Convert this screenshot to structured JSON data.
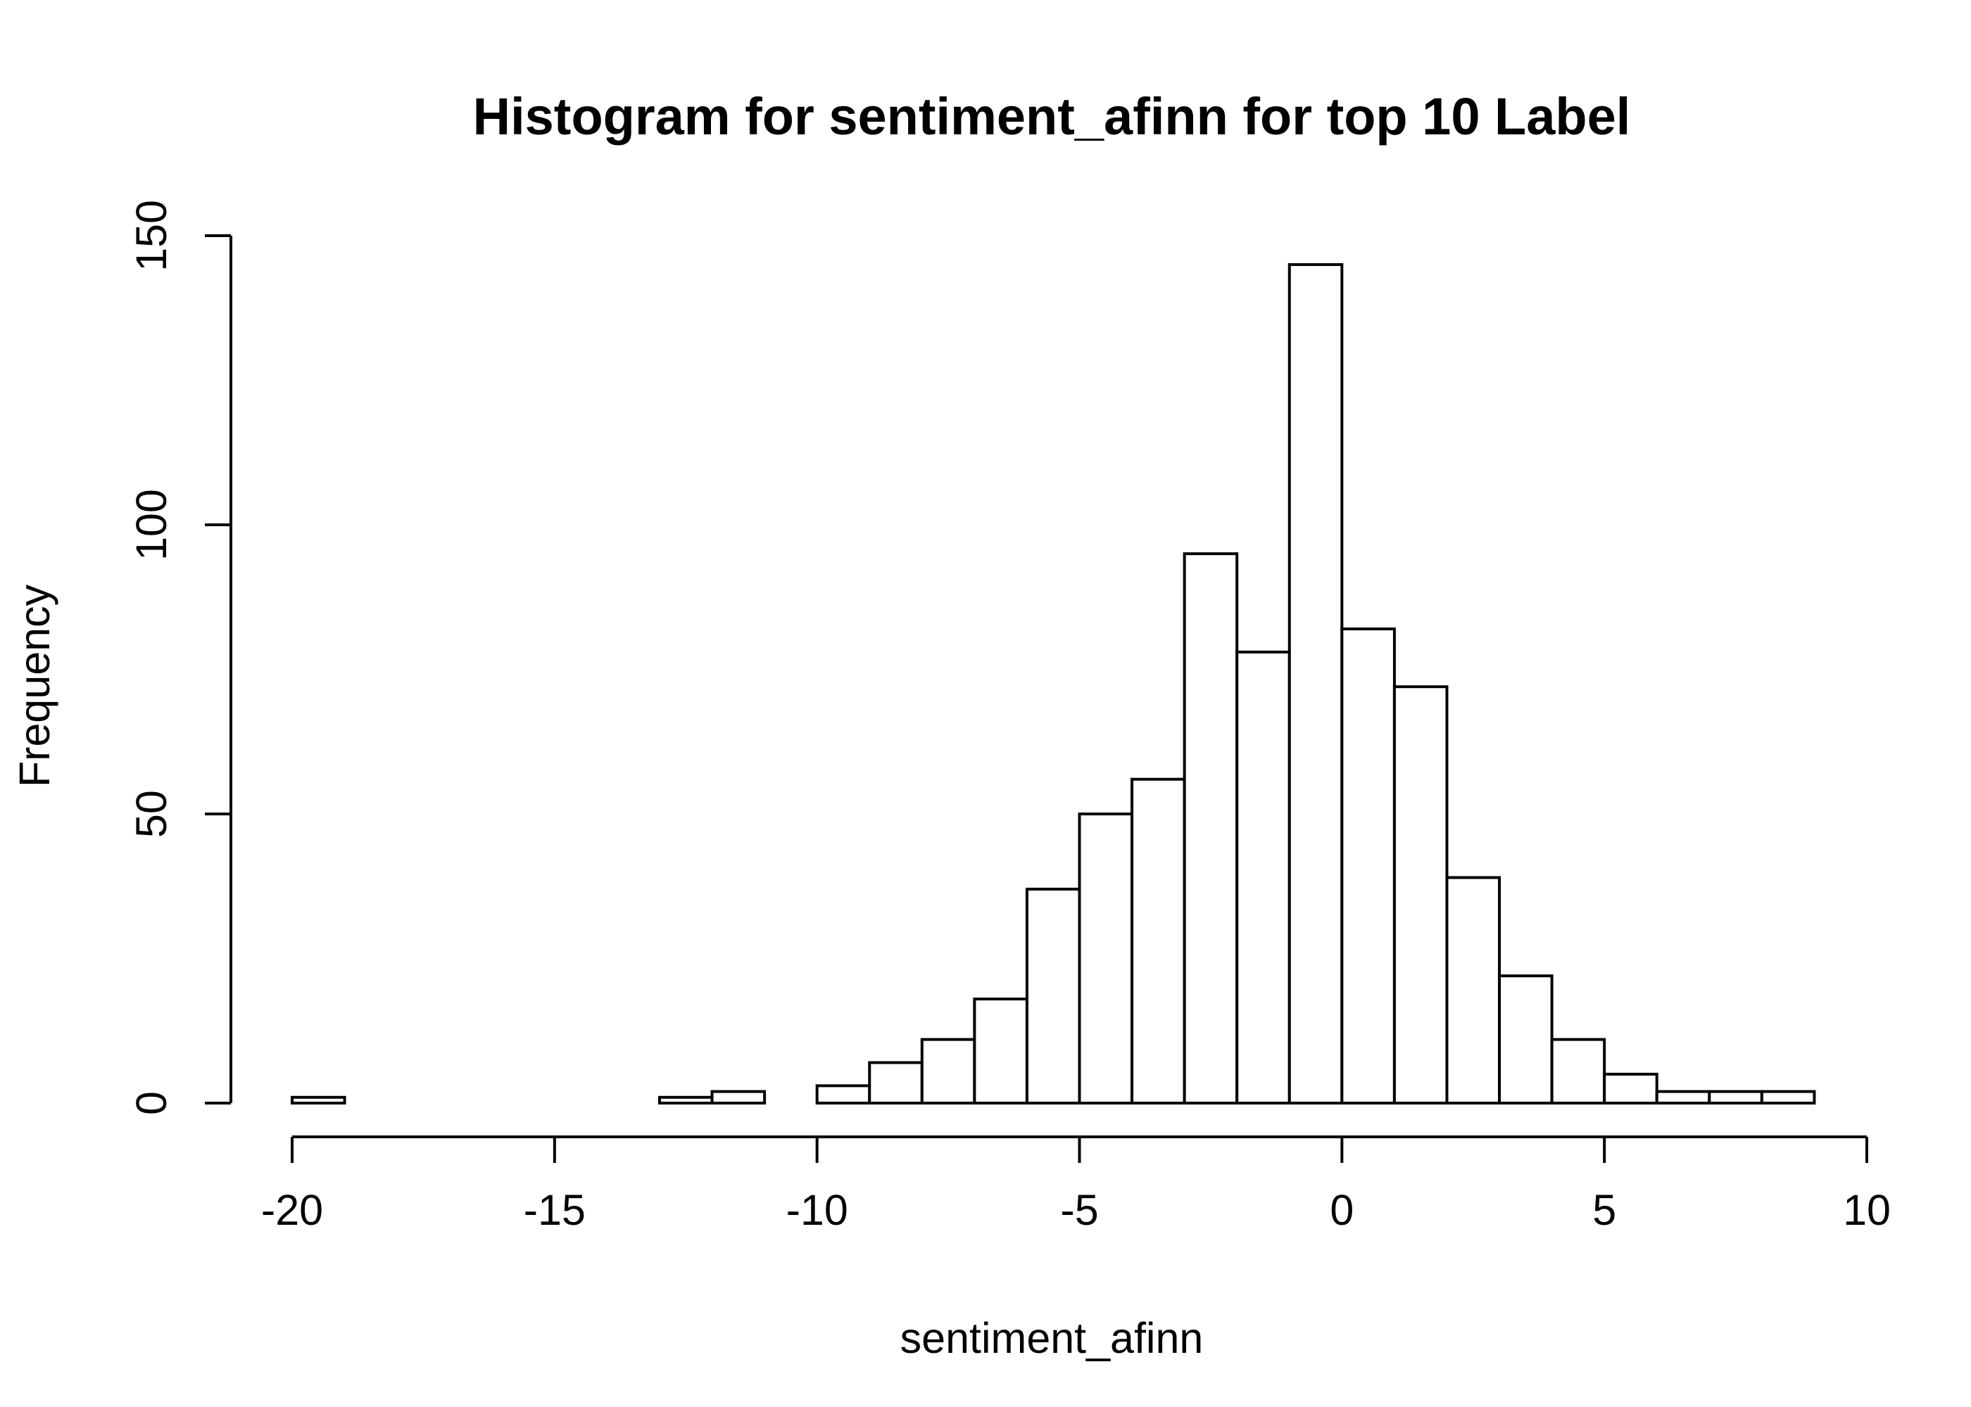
{
  "chart_data": {
    "type": "bar",
    "title": "Histogram for sentiment_afinn for top 10 Label",
    "xlabel": "sentiment_afinn",
    "ylabel": "Frequency",
    "bin_width": 1,
    "bins": [
      {
        "x0": -20,
        "x1": -19,
        "count": 1
      },
      {
        "x0": -19,
        "x1": -18,
        "count": 0
      },
      {
        "x0": -18,
        "x1": -17,
        "count": 0
      },
      {
        "x0": -17,
        "x1": -16,
        "count": 0
      },
      {
        "x0": -16,
        "x1": -15,
        "count": 0
      },
      {
        "x0": -15,
        "x1": -14,
        "count": 0
      },
      {
        "x0": -14,
        "x1": -13,
        "count": 0
      },
      {
        "x0": -13,
        "x1": -12,
        "count": 1
      },
      {
        "x0": -12,
        "x1": -11,
        "count": 2
      },
      {
        "x0": -11,
        "x1": -10,
        "count": 0
      },
      {
        "x0": -10,
        "x1": -9,
        "count": 3
      },
      {
        "x0": -9,
        "x1": -8,
        "count": 7
      },
      {
        "x0": -8,
        "x1": -7,
        "count": 11
      },
      {
        "x0": -7,
        "x1": -6,
        "count": 18
      },
      {
        "x0": -6,
        "x1": -5,
        "count": 37
      },
      {
        "x0": -5,
        "x1": -4,
        "count": 50
      },
      {
        "x0": -4,
        "x1": -3,
        "count": 56
      },
      {
        "x0": -3,
        "x1": -2,
        "count": 95
      },
      {
        "x0": -2,
        "x1": -1,
        "count": 78
      },
      {
        "x0": -1,
        "x1": 0,
        "count": 145
      },
      {
        "x0": 0,
        "x1": 1,
        "count": 82
      },
      {
        "x0": 1,
        "x1": 2,
        "count": 72
      },
      {
        "x0": 2,
        "x1": 3,
        "count": 39
      },
      {
        "x0": 3,
        "x1": 4,
        "count": 22
      },
      {
        "x0": 4,
        "x1": 5,
        "count": 11
      },
      {
        "x0": 5,
        "x1": 6,
        "count": 5
      },
      {
        "x0": 6,
        "x1": 7,
        "count": 2
      },
      {
        "x0": 7,
        "x1": 8,
        "count": 2
      },
      {
        "x0": 8,
        "x1": 9,
        "count": 2
      }
    ],
    "xlim": [
      -20,
      10
    ],
    "ylim": [
      0,
      150
    ],
    "x_ticks": [
      -20,
      -15,
      -10,
      -5,
      0,
      5,
      10
    ],
    "x_tick_labels": [
      "-20",
      "-15",
      "-10",
      "-5",
      "0",
      "5",
      "10"
    ],
    "y_ticks": [
      0,
      50,
      100,
      150
    ],
    "y_tick_labels": [
      "0",
      "50",
      "100",
      "150"
    ],
    "grid": false,
    "colors": {
      "bar_fill": "#ffffff",
      "bar_stroke": "#000000"
    }
  }
}
